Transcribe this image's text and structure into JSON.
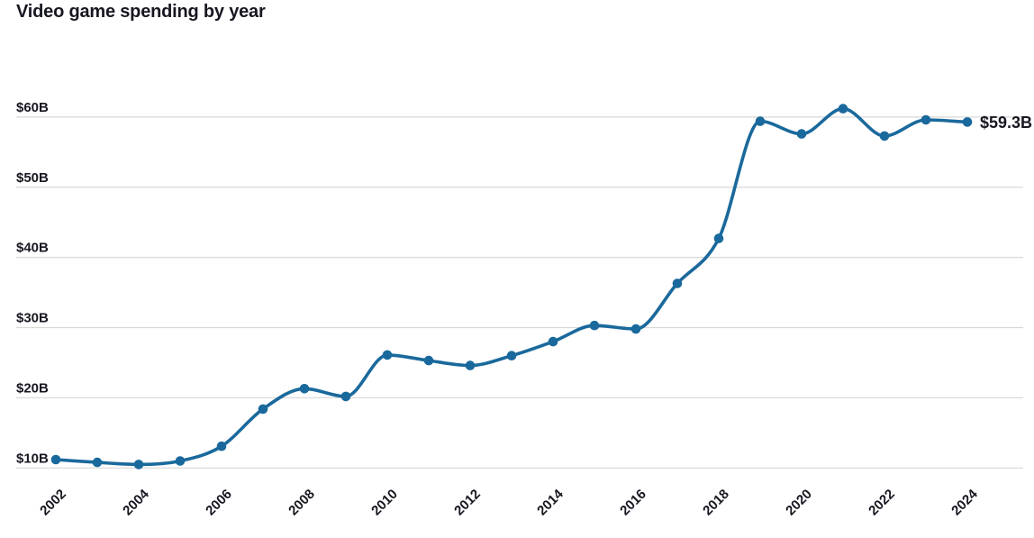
{
  "title": "Video game spending by year",
  "chart_data": {
    "type": "line",
    "title": "Video game spending by year",
    "unit": "USD billions",
    "x": [
      2002,
      2003,
      2004,
      2005,
      2006,
      2007,
      2008,
      2009,
      2010,
      2011,
      2012,
      2013,
      2014,
      2015,
      2016,
      2017,
      2018,
      2019,
      2020,
      2021,
      2022,
      2023,
      2024
    ],
    "values": [
      11.2,
      10.8,
      10.5,
      11.0,
      13.1,
      18.4,
      21.3,
      20.2,
      26.1,
      25.3,
      24.6,
      26.0,
      28.0,
      30.3,
      29.8,
      36.3,
      42.7,
      59.4,
      57.6,
      61.2,
      57.3,
      59.6,
      59.3
    ],
    "x_tick_years": [
      2002,
      2004,
      2006,
      2008,
      2010,
      2012,
      2014,
      2016,
      2018,
      2020,
      2022,
      2024
    ],
    "x_tick_labels": [
      "2002",
      "2004",
      "2006",
      "2008",
      "2010",
      "2012",
      "2014",
      "2016",
      "2018",
      "2020",
      "2022",
      "2024"
    ],
    "y_ticks": [
      10,
      20,
      30,
      40,
      50,
      60
    ],
    "y_tick_labels": [
      "$10B",
      "$20B",
      "$30B",
      "$40B",
      "$50B",
      "$60B"
    ],
    "end_label": "$59.3B",
    "ylim": [
      10,
      65
    ],
    "grid": "horizontal",
    "legend": "none",
    "marker": "circle",
    "colors": {
      "line": "#1a699c",
      "grid": "#d8d8d8",
      "text": "#171721",
      "background": "#ffffff"
    }
  }
}
